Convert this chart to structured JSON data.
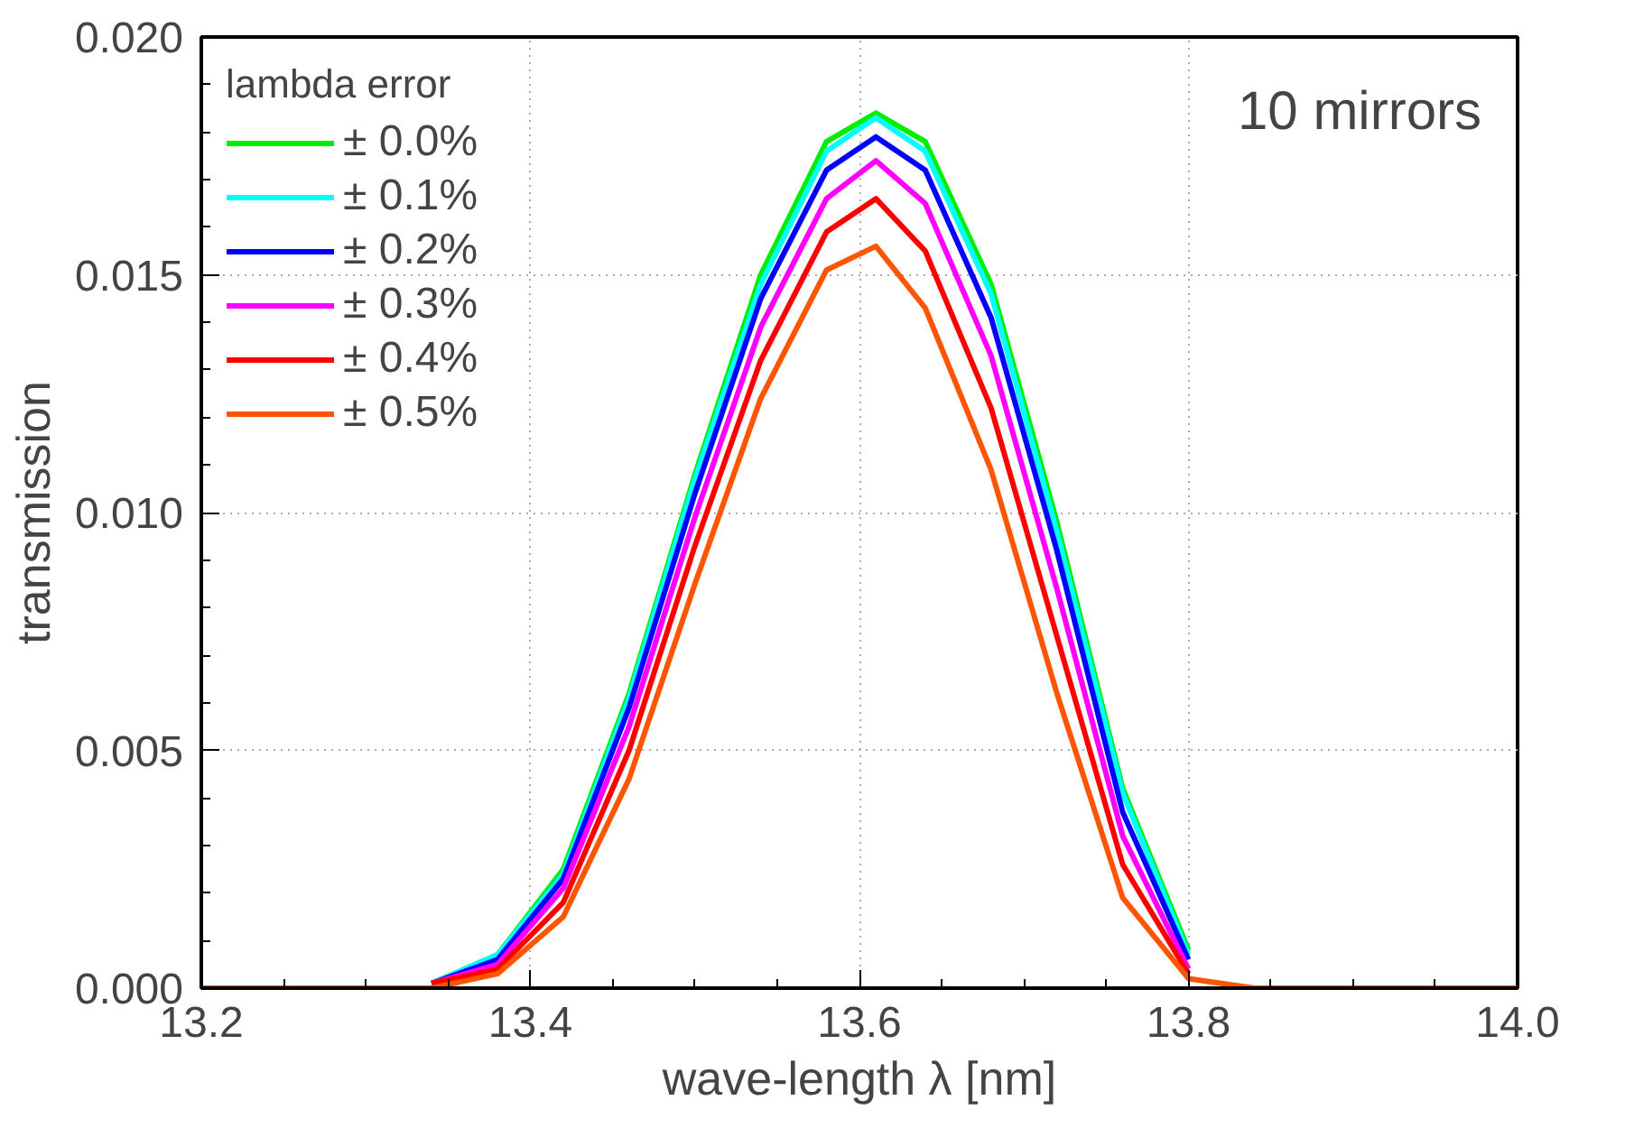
{
  "chart_data": {
    "type": "line",
    "xlabel": "wave-length λ [nm]",
    "ylabel": "transmission",
    "legend_title": "lambda error",
    "annotations": [
      "10 mirrors"
    ],
    "x": [
      13.2,
      13.3,
      13.34,
      13.38,
      13.42,
      13.46,
      13.5,
      13.54,
      13.58,
      13.61,
      13.64,
      13.68,
      13.72,
      13.76,
      13.8,
      13.84,
      14.0
    ],
    "series": [
      {
        "name": "± 0.0%",
        "color": "#00ee00",
        "values": [
          null,
          null,
          0.0001,
          0.0007,
          0.0025,
          0.0062,
          0.0108,
          0.015,
          0.0178,
          0.0184,
          0.0178,
          0.0148,
          0.0098,
          0.0042,
          0.0008,
          null,
          null
        ]
      },
      {
        "name": "± 0.1%",
        "color": "#00ffff",
        "values": [
          null,
          null,
          0.0001,
          0.0007,
          0.0024,
          0.0061,
          0.0107,
          0.0148,
          0.0176,
          0.0183,
          0.0176,
          0.0146,
          0.0096,
          0.0041,
          0.0007,
          null,
          null
        ]
      },
      {
        "name": "± 0.2%",
        "color": "#0000ff",
        "values": [
          null,
          null,
          0.0001,
          0.0006,
          0.0023,
          0.0059,
          0.0104,
          0.0145,
          0.0172,
          0.0179,
          0.0172,
          0.0141,
          0.0092,
          0.0037,
          0.0006,
          null,
          null
        ]
      },
      {
        "name": "± 0.3%",
        "color": "#ff00ff",
        "values": [
          null,
          null,
          0.0001,
          0.0005,
          0.0021,
          0.0055,
          0.0099,
          0.0139,
          0.0166,
          0.0174,
          0.0165,
          0.0133,
          0.0084,
          0.0032,
          0.0004,
          null,
          null
        ]
      },
      {
        "name": "± 0.4%",
        "color": "#ff0000",
        "values": [
          null,
          null,
          0.0001,
          0.0004,
          0.0018,
          0.005,
          0.0093,
          0.0132,
          0.0159,
          0.0166,
          0.0155,
          0.0122,
          0.0074,
          0.0026,
          0.0003,
          null,
          null
        ]
      },
      {
        "name": "± 0.5%",
        "color": "#ff5500",
        "values": [
          0,
          0,
          0,
          0.0003,
          0.0015,
          0.0044,
          0.0085,
          0.0124,
          0.0151,
          0.0156,
          0.0143,
          0.0109,
          0.0062,
          0.0019,
          0.0002,
          0,
          0
        ]
      }
    ],
    "xlim": [
      13.2,
      14.0
    ],
    "ylim": [
      0.0,
      0.02
    ],
    "xticks": [
      {
        "value": 13.2,
        "label": "13.2"
      },
      {
        "value": 13.4,
        "label": "13.4"
      },
      {
        "value": 13.6,
        "label": "13.6"
      },
      {
        "value": 13.8,
        "label": "13.8"
      },
      {
        "value": 14.0,
        "label": "14.0"
      }
    ],
    "yticks": [
      {
        "value": 0.0,
        "label": "0.000"
      },
      {
        "value": 0.005,
        "label": "0.005"
      },
      {
        "value": 0.01,
        "label": "0.010"
      },
      {
        "value": 0.015,
        "label": "0.015"
      },
      {
        "value": 0.02,
        "label": "0.020"
      }
    ],
    "grid": true,
    "legend": "top left",
    "line_style": "solid",
    "marker": "none"
  }
}
